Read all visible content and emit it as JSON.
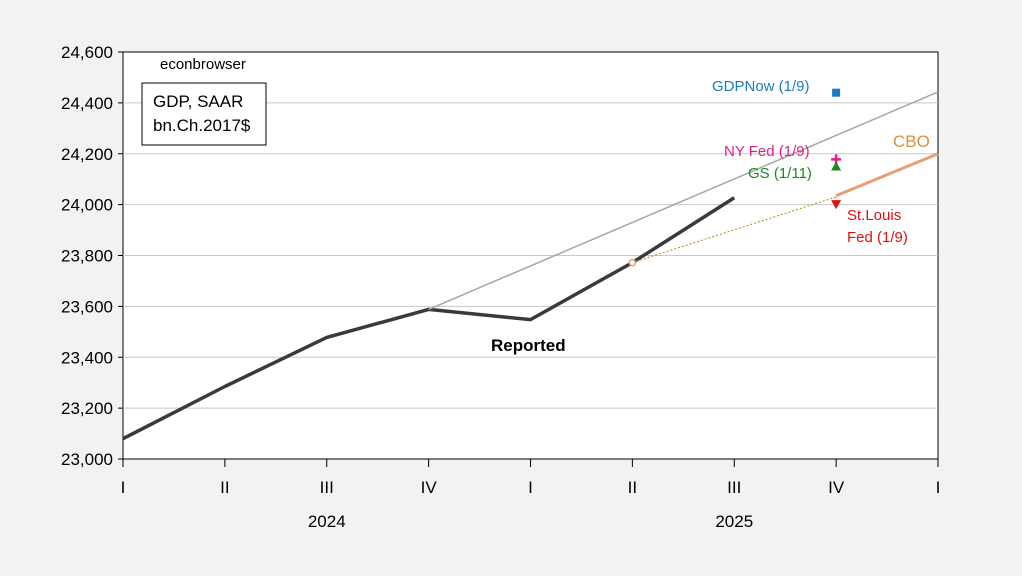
{
  "chart_data": {
    "type": "line",
    "watermark": "econbrowser",
    "legend_box": [
      "GDP, SAAR",
      "bn.Ch.2017$"
    ],
    "x_categories": [
      "I",
      "II",
      "III",
      "IV",
      "I",
      "II",
      "III",
      "IV",
      "I"
    ],
    "year_labels": [
      {
        "label": "2024",
        "at_index": 2
      },
      {
        "label": "2025",
        "at_index": 6
      }
    ],
    "ylim": [
      23000,
      24600
    ],
    "yticks": [
      23000,
      23200,
      23400,
      23600,
      23800,
      24000,
      24200,
      24400,
      24600
    ],
    "ytick_labels": [
      "23,000",
      "23,200",
      "23,400",
      "23,600",
      "23,800",
      "24,000",
      "24,200",
      "24,400",
      "24,600"
    ],
    "grid": true,
    "series": [
      {
        "name": "Reported",
        "color": "#3a3a3a",
        "style": "solid-thick",
        "points": [
          [
            0,
            23080
          ],
          [
            1,
            23285
          ],
          [
            2,
            23478
          ],
          [
            3,
            23588
          ],
          [
            4,
            23548
          ],
          [
            5,
            23772
          ],
          [
            6,
            24027
          ]
        ]
      },
      {
        "name": "",
        "color": "#a6a6a6",
        "style": "solid-thin",
        "points": [
          [
            3,
            23588
          ],
          [
            8,
            24443
          ]
        ]
      },
      {
        "name": "",
        "color": "#b8860b",
        "style": "dotted",
        "points": [
          [
            5,
            23772
          ],
          [
            7,
            24030
          ]
        ]
      },
      {
        "name": "CBO",
        "color": "#e8a070",
        "style": "solid-medium",
        "points": [
          [
            7,
            24035
          ],
          [
            8,
            24200
          ]
        ]
      }
    ],
    "markers": [
      {
        "name": "GDPNow (1/9)",
        "x": 7,
        "y": 24440,
        "shape": "square",
        "color": "#1a7dc0"
      },
      {
        "name": "NY Fed (1/9)",
        "x": 7,
        "y": 24178,
        "shape": "plus",
        "color": "#e0218a"
      },
      {
        "name": "GS (1/11)",
        "x": 7,
        "y": 24150,
        "shape": "triangle-up",
        "color": "#1a8a1a"
      },
      {
        "name": "St.Louis Fed (1/9)",
        "x": 7,
        "y": 24002,
        "shape": "triangle-down",
        "color": "#e01010"
      },
      {
        "name": "",
        "x": 5,
        "y": 23772,
        "shape": "circle",
        "color": "#e8a070"
      }
    ],
    "annotations": [
      {
        "text": "Reported",
        "color": "#000000"
      },
      {
        "text": "GDPNow (1/9)",
        "color": "#1a7dc0"
      },
      {
        "text": "NY Fed (1/9)",
        "color": "#e0218a"
      },
      {
        "text": "GS (1/11)",
        "color": "#1a8a1a"
      },
      {
        "text": "St.Louis",
        "color": "#e01010"
      },
      {
        "text": "Fed (1/9)",
        "color": "#e01010"
      },
      {
        "text": "CBO",
        "color": "#d4923a"
      }
    ]
  }
}
